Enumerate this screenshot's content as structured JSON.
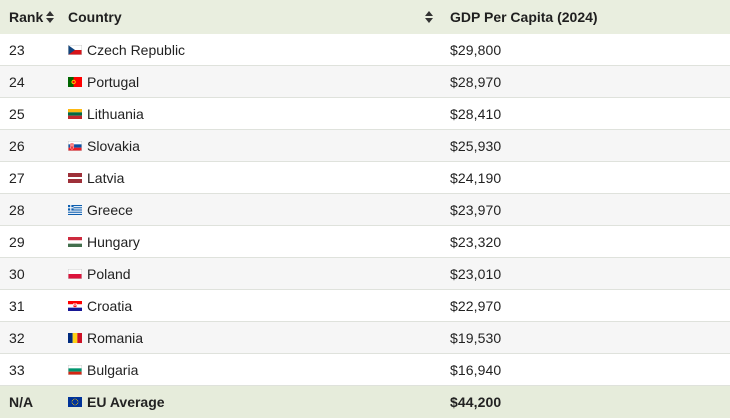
{
  "header": {
    "rank_label": "Rank",
    "country_label": "Country",
    "gdp_label": "GDP Per Capita (2024)"
  },
  "rows": [
    {
      "rank": "23",
      "country": "Czech Republic",
      "gdp": "$29,800",
      "flag": "czech-flag-icon"
    },
    {
      "rank": "24",
      "country": "Portugal",
      "gdp": "$28,970",
      "flag": "portugal-flag-icon"
    },
    {
      "rank": "25",
      "country": "Lithuania",
      "gdp": "$28,410",
      "flag": "lithuania-flag-icon"
    },
    {
      "rank": "26",
      "country": "Slovakia",
      "gdp": "$25,930",
      "flag": "slovakia-flag-icon"
    },
    {
      "rank": "27",
      "country": "Latvia",
      "gdp": "$24,190",
      "flag": "latvia-flag-icon"
    },
    {
      "rank": "28",
      "country": "Greece",
      "gdp": "$23,970",
      "flag": "greece-flag-icon"
    },
    {
      "rank": "29",
      "country": "Hungary",
      "gdp": "$23,320",
      "flag": "hungary-flag-icon"
    },
    {
      "rank": "30",
      "country": "Poland",
      "gdp": "$23,010",
      "flag": "poland-flag-icon"
    },
    {
      "rank": "31",
      "country": "Croatia",
      "gdp": "$22,970",
      "flag": "croatia-flag-icon"
    },
    {
      "rank": "32",
      "country": "Romania",
      "gdp": "$19,530",
      "flag": "romania-flag-icon"
    },
    {
      "rank": "33",
      "country": "Bulgaria",
      "gdp": "$16,940",
      "flag": "bulgaria-flag-icon"
    }
  ],
  "footer": {
    "rank": "N/A",
    "country": "EU Average",
    "gdp": "$44,200",
    "flag": "eu-flag-icon"
  },
  "colors": {
    "header_bg": "#e9eedf",
    "footer_bg": "#e6ecdb",
    "alt_row_bg": "#f6f6f6"
  }
}
